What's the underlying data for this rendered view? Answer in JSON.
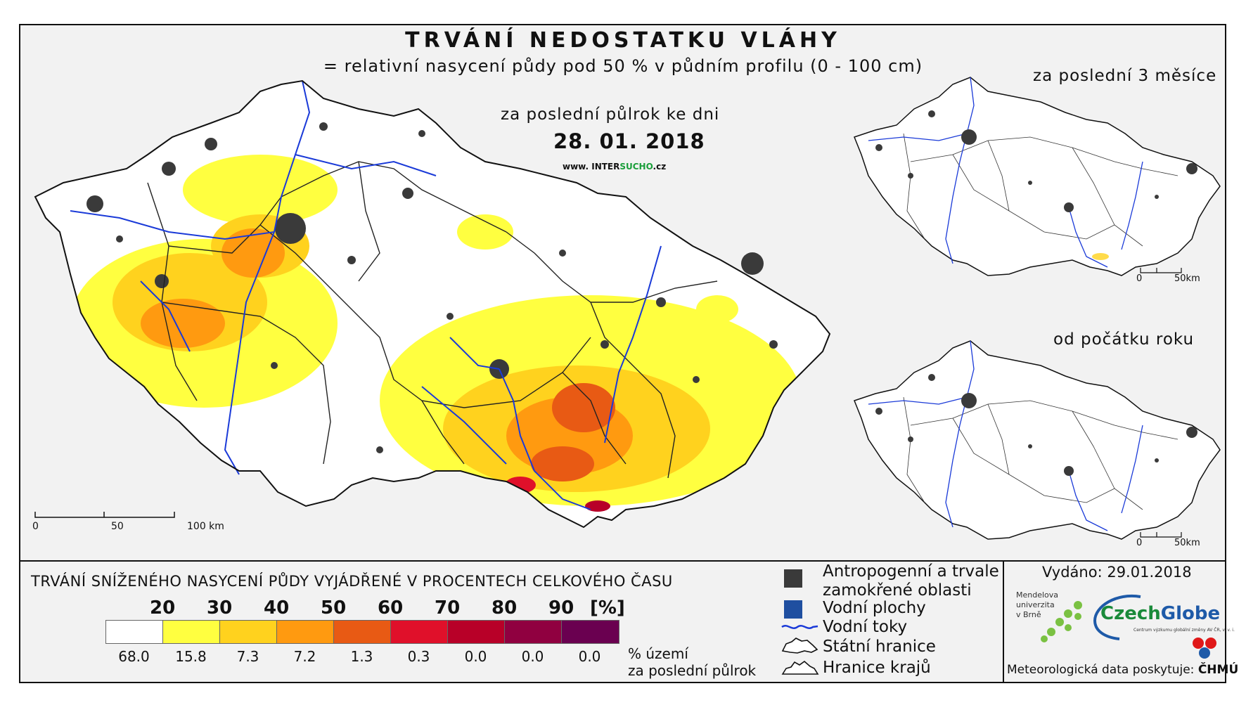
{
  "title": "TRVÁNÍ NEDOSTATKU VLÁHY",
  "subtitle": "= relativní nasycení půdy pod 50 % v půdním profilu (0 - 100 cm)",
  "main_map": {
    "period_label": "za poslední půlrok ke dni",
    "date": "28. 01. 2018",
    "website_prefix": "www. INTER",
    "website_highlight": "SUCHO",
    "website_suffix": ".cz",
    "scale": {
      "ticks": [
        "0",
        "50",
        "100 km"
      ]
    }
  },
  "inset_top": {
    "title": "za poslední 3 měsíce",
    "scale": {
      "ticks": [
        "0",
        "50km"
      ]
    }
  },
  "inset_bottom": {
    "title": "od počátku roku",
    "scale": {
      "ticks": [
        "0",
        "50km"
      ]
    }
  },
  "legend": {
    "title": "TRVÁNÍ SNÍŽENÉHO NASYCENÍ PŮDY VYJÁDŘENÉ V PROCENTECH CELKOVÉHO ČASU",
    "class_labels": [
      "20",
      "30",
      "40",
      "50",
      "60",
      "70",
      "80",
      "90",
      "[%]"
    ],
    "colors": [
      "#ffffff",
      "#ffff40",
      "#ffd21e",
      "#ff9a10",
      "#e85a14",
      "#e0102a",
      "#b80028",
      "#900040",
      "#6a0050"
    ],
    "territory_pct": [
      "68.0",
      "15.8",
      "7.3",
      "7.2",
      "1.3",
      "0.3",
      "0.0",
      "0.0",
      "0.0"
    ],
    "unit_line1": "% území",
    "unit_line2": "za poslední půlrok"
  },
  "symbols": {
    "anthropogenic_1": "Antropogenní a trvale",
    "anthropogenic_2": "zamokřené oblasti",
    "water_bodies": "Vodní plochy",
    "rivers": "Vodní toky",
    "state_border": "Státní hranice",
    "region_border": "Hranice krajů",
    "colors": {
      "anthropogenic": "#3a3a3a",
      "water_body": "#1f4fa0",
      "river": "#1a3ad8"
    }
  },
  "credits": {
    "issued": "Vydáno: 29.01.2018",
    "mendel_1": "Mendelova",
    "mendel_2": "univerzita",
    "mendel_3": "v Brně",
    "czechglobe_a": "Czech",
    "czechglobe_b": "Globe",
    "czechglobe_sub": "Centrum výzkumu globální změny AV ČR, v. v. i.",
    "meteo": "Meteorologická data poskytuje:",
    "chmu": "ČHMÚ"
  }
}
